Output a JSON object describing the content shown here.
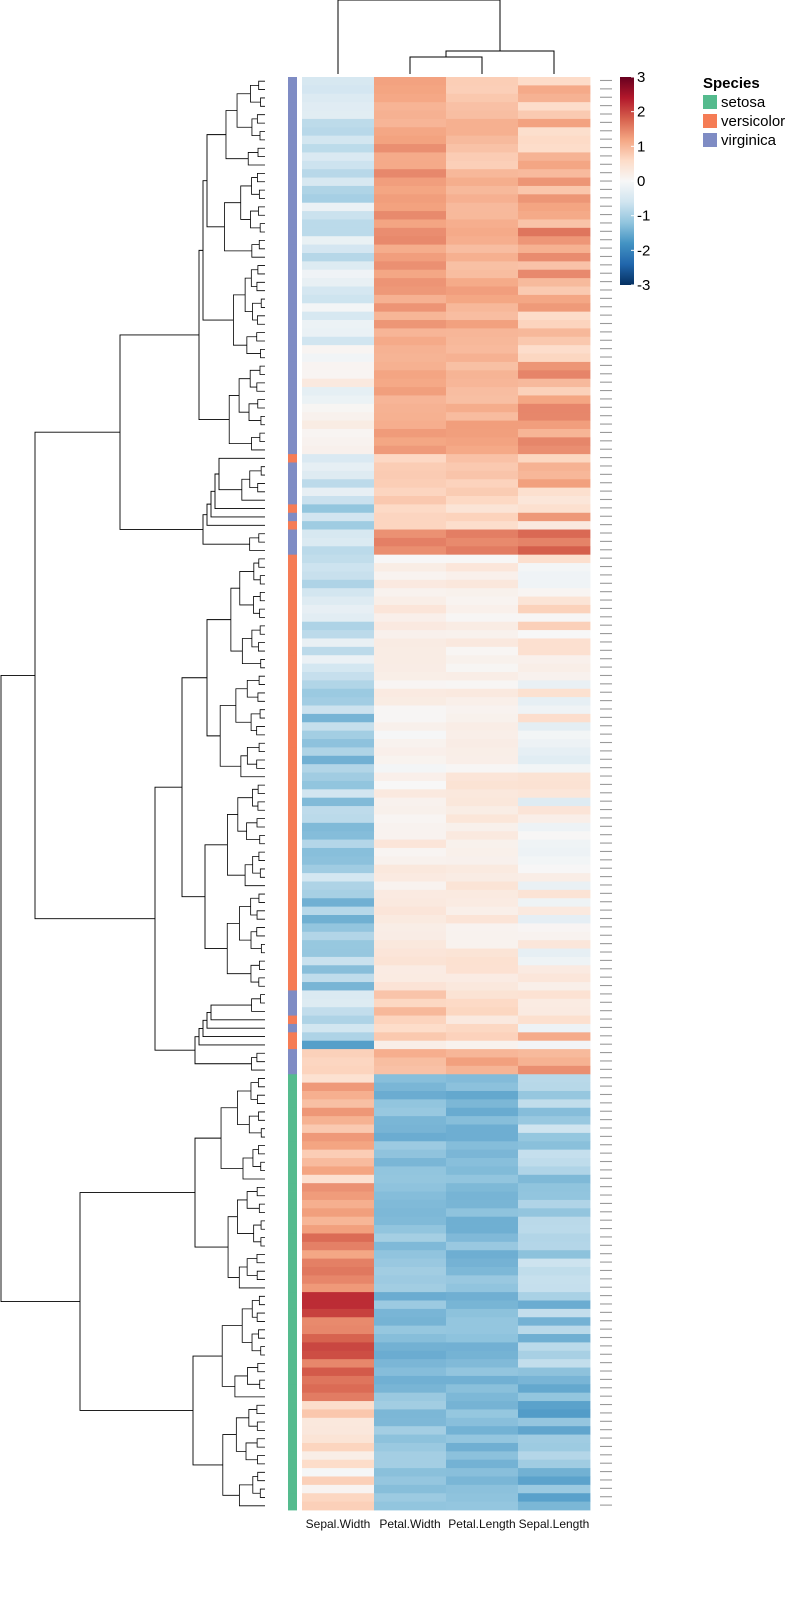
{
  "chart_data": {
    "type": "heatmap",
    "columns": [
      "Sepal.Width",
      "Petal.Width",
      "Petal.Length",
      "Sepal.Length"
    ],
    "color_scale": {
      "ticks": [
        3,
        2,
        1,
        0,
        -1,
        -2,
        -3
      ],
      "range": [
        -3,
        3
      ],
      "colors": [
        "#053061",
        "#2166ac",
        "#4393c3",
        "#92c5de",
        "#d1e5f0",
        "#f7f7f7",
        "#fddbc7",
        "#f4a582",
        "#d6604d",
        "#b2182b",
        "#67001f"
      ]
    },
    "annotation": {
      "title": "Species",
      "levels": [
        {
          "name": "setosa",
          "color": "#55BB8E"
        },
        {
          "name": "versicolor",
          "color": "#F57C55"
        },
        {
          "name": "virginica",
          "color": "#7F8CC4"
        }
      ]
    },
    "row_label_text": "",
    "blocks": [
      {
        "n": 11,
        "sp": "virginica",
        "sw": -0.5,
        "pw": 1.2,
        "pl": 0.9,
        "sl": 0.8
      },
      {
        "n": 11,
        "sp": "virginica",
        "sw": -0.6,
        "pw": 1.3,
        "pl": 1.0,
        "sl": 1.2
      },
      {
        "n": 12,
        "sp": "virginica",
        "sw": -0.2,
        "pw": 1.2,
        "pl": 1.1,
        "sl": 1.0
      },
      {
        "n": 11,
        "sp": "virginica",
        "sw": 0.1,
        "pw": 1.1,
        "pl": 1.1,
        "sl": 1.1
      },
      {
        "n": 1,
        "sp": "versicolor",
        "sw": -0.4,
        "pw": 0.8,
        "pl": 0.7,
        "sl": 0.6
      },
      {
        "n": 5,
        "sp": "virginica",
        "sw": -0.4,
        "pw": 0.8,
        "pl": 0.7,
        "sl": 0.8
      },
      {
        "n": 1,
        "sp": "versicolor",
        "sw": -1.6,
        "pw": 0.6,
        "pl": 0.6,
        "sl": 0.6
      },
      {
        "n": 1,
        "sp": "virginica",
        "sw": -0.3,
        "pw": 0.6,
        "pl": 0.8,
        "sl": 1.1
      },
      {
        "n": 1,
        "sp": "versicolor",
        "sw": -0.9,
        "pw": 0.5,
        "pl": 0.5,
        "sl": 0.4
      },
      {
        "n": 3,
        "sp": "virginica",
        "sw": -0.8,
        "pw": 1.5,
        "pl": 1.6,
        "sl": 1.8
      },
      {
        "n": 14,
        "sp": "versicolor",
        "sw": -0.6,
        "pw": 0.2,
        "pl": 0.2,
        "sl": 0.3
      },
      {
        "n": 13,
        "sp": "versicolor",
        "sw": -1.0,
        "pw": 0.1,
        "pl": 0.2,
        "sl": 0.1
      },
      {
        "n": 13,
        "sp": "versicolor",
        "sw": -0.9,
        "pw": 0.2,
        "pl": 0.3,
        "sl": 0.0
      },
      {
        "n": 12,
        "sp": "versicolor",
        "sw": -1.1,
        "pw": 0.3,
        "pl": 0.3,
        "sl": 0.1
      },
      {
        "n": 3,
        "sp": "virginica",
        "sw": -0.3,
        "pw": 0.8,
        "pl": 0.6,
        "sl": 0.5
      },
      {
        "n": 1,
        "sp": "versicolor",
        "sw": -0.7,
        "pw": 0.5,
        "pl": 0.4,
        "sl": 0.3
      },
      {
        "n": 1,
        "sp": "virginica",
        "sw": -0.7,
        "pw": 0.6,
        "pl": 0.5,
        "sl": 0.2
      },
      {
        "n": 1,
        "sp": "versicolor",
        "sw": -0.6,
        "pw": 1.0,
        "pl": 0.6,
        "sl": 0.8
      },
      {
        "n": 1,
        "sp": "versicolor",
        "sw": -1.8,
        "pw": 0.4,
        "pl": 0.3,
        "sl": 0.2
      },
      {
        "n": 3,
        "sp": "virginica",
        "sw": 0.9,
        "pw": 0.9,
        "pl": 1.2,
        "sl": 1.4
      },
      {
        "n": 13,
        "sp": "setosa",
        "sw": 0.9,
        "pw": -1.3,
        "pl": -1.4,
        "sl": -1.0
      },
      {
        "n": 13,
        "sp": "setosa",
        "sw": 1.4,
        "pw": -1.2,
        "pl": -1.3,
        "sl": -0.9
      },
      {
        "n": 13,
        "sp": "setosa",
        "sw": 1.8,
        "pw": -1.3,
        "pl": -1.3,
        "sl": -1.1
      },
      {
        "n": 13,
        "sp": "setosa",
        "sw": 0.4,
        "pw": -1.2,
        "pl": -1.3,
        "sl": -1.3
      }
    ]
  }
}
